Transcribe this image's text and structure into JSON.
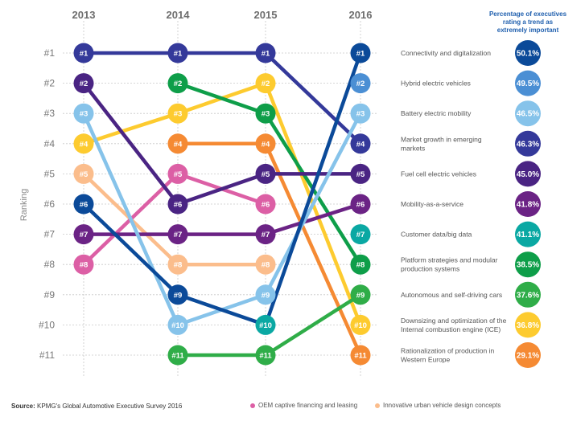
{
  "chart_data": {
    "type": "line",
    "subtype": "bump-chart",
    "x": [
      "2013",
      "2014",
      "2015",
      "2016"
    ],
    "ylabel": "Ranking",
    "y_ticks": [
      "#1",
      "#2",
      "#3",
      "#4",
      "#5",
      "#6",
      "#7",
      "#8",
      "#9",
      "#10",
      "#11"
    ],
    "ylim": [
      1,
      11
    ],
    "y_inverted": true,
    "grid": true,
    "percent_header": "Percentage of executives rating a trend as extremely important",
    "series": [
      {
        "name": "Connectivity and digitalization",
        "label_lines": [
          "Connectivity and digitalization"
        ],
        "color": "#0b4a99",
        "ranks": [
          6,
          9,
          10,
          1
        ],
        "percent": "50.1%",
        "node_colors": [
          null,
          null,
          "#0aa8a3",
          null
        ]
      },
      {
        "name": "Hybrid electric vehicles",
        "label_lines": [
          "Hybrid electric vehicles"
        ],
        "color": "#4b8fd4",
        "ranks": [
          null,
          null,
          null,
          2
        ],
        "percent": "49.5%"
      },
      {
        "name": "Battery electric mobility",
        "label_lines": [
          "Battery electric mobility"
        ],
        "color": "#86c3ea",
        "ranks": [
          3,
          10,
          9,
          3
        ],
        "percent": "46.5%"
      },
      {
        "name": "Market growth in emerging markets",
        "label_lines": [
          "Market growth in emerging",
          "markets"
        ],
        "color": "#34399a",
        "ranks": [
          1,
          1,
          1,
          4
        ],
        "percent": "46.3%"
      },
      {
        "name": "Fuel cell electric vehicles",
        "label_lines": [
          "Fuel cell electric vehicles"
        ],
        "color": "#4a2483",
        "ranks": [
          2,
          6,
          5,
          5
        ],
        "percent": "45.0%"
      },
      {
        "name": "Mobility-as-a-service",
        "label_lines": [
          "Mobility-as-a-service"
        ],
        "color": "#6b2385",
        "ranks": [
          7,
          7,
          7,
          6
        ],
        "percent": "41.8%"
      },
      {
        "name": "Customer data/big data",
        "label_lines": [
          "Customer data/big data"
        ],
        "color": "#0aa8a3",
        "ranks": [
          null,
          null,
          null,
          7
        ],
        "percent": "41.1%"
      },
      {
        "name": "Platform strategies and modular production systems",
        "label_lines": [
          "Platform strategies and modular",
          "production systems"
        ],
        "color": "#0e9e49",
        "ranks": [
          null,
          2,
          3,
          8
        ],
        "percent": "38.5%"
      },
      {
        "name": "Autonomous and self-driving cars",
        "label_lines": [
          "Autonomous and self-driving cars"
        ],
        "color": "#2fad48",
        "ranks": [
          null,
          11,
          11,
          9
        ],
        "percent": "37.6%"
      },
      {
        "name": "Downsizing and optimization of the Internal combustion engine (ICE)",
        "label_lines": [
          "Downsizing and optimization of the",
          "Internal combustion engine (ICE)"
        ],
        "color": "#fdcb2f",
        "ranks": [
          4,
          3,
          2,
          10
        ],
        "percent": "36.8%"
      },
      {
        "name": "Rationalization of production in Western Europe",
        "label_lines": [
          "Rationalization of production in",
          "Western Europe"
        ],
        "color": "#f58a33",
        "ranks": [
          null,
          4,
          4,
          11
        ],
        "percent": "29.1%"
      },
      {
        "name": "OEM captive financing and leasing",
        "color": "#dc5fa5",
        "ranks": [
          8,
          5,
          6,
          null
        ],
        "legend": true
      },
      {
        "name": "Innovative urban vehicle design concepts",
        "color": "#fbbd8c",
        "ranks": [
          5,
          8,
          8,
          null
        ],
        "legend": true
      }
    ]
  },
  "footer": {
    "source_label": "Source:",
    "source_text": " KPMG's Global Automotive Executive Survey 2016",
    "legend": [
      {
        "label": "OEM captive financing and leasing",
        "color": "#dc5fa5"
      },
      {
        "label": "Innovative urban vehicle design concepts",
        "color": "#fbbd8c"
      }
    ]
  }
}
